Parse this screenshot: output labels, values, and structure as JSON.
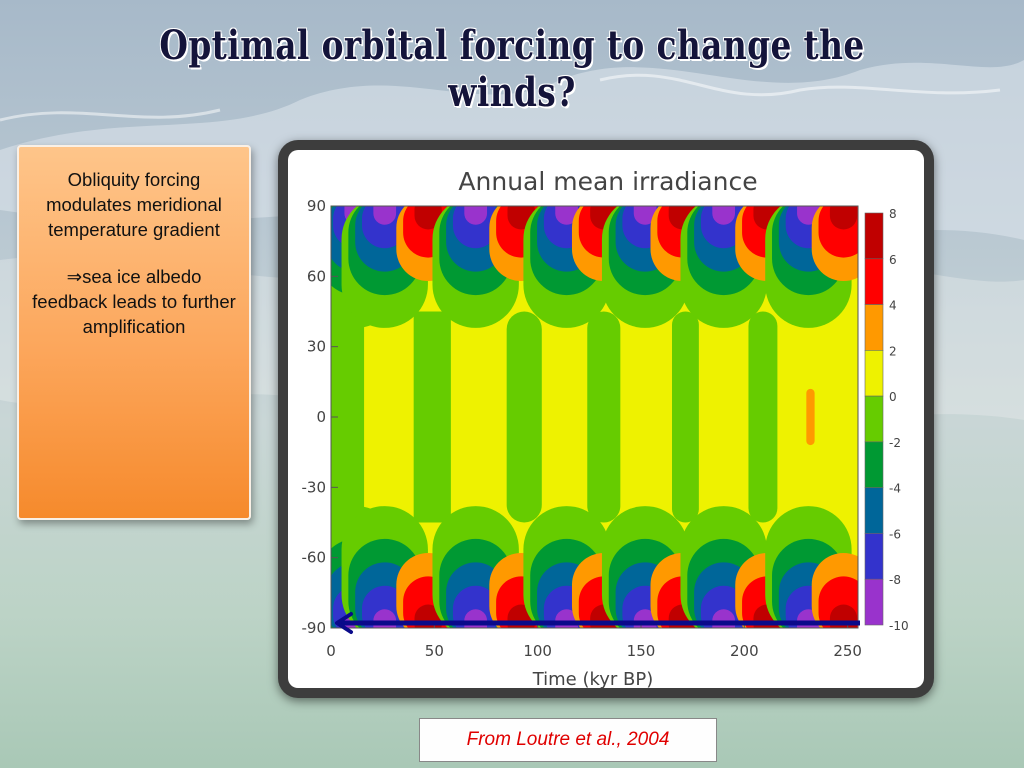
{
  "slide": {
    "title": "Optimal orbital forcing to change the winds?",
    "note_line1": "Obliquity forcing modulates meridional temperature gradient",
    "note_line2": "⇒sea ice albedo feedback leads to further amplification",
    "citation": "From Loutre et al., 2004"
  },
  "chart_data": {
    "type": "heatmap",
    "title": "Annual mean irradiance",
    "xlabel": "Time (kyr BP)",
    "ylabel": "",
    "xlim": [
      0,
      255
    ],
    "ylim": [
      -90,
      90
    ],
    "x_ticks": [
      0,
      50,
      100,
      150,
      200,
      250
    ],
    "y_ticks": [
      90,
      60,
      30,
      0,
      -30,
      -60,
      -90
    ],
    "colorbar": {
      "levels": [
        8,
        6,
        4,
        2,
        0,
        -2,
        -4,
        -6,
        -8,
        -10
      ],
      "colors": [
        "#c00000",
        "#ff0000",
        "#ff9900",
        "#eef200",
        "#66cc00",
        "#009933",
        "#006699",
        "#3333cc",
        "#9933cc"
      ]
    },
    "polar_extremes": [
      {
        "time": 3,
        "type": "max"
      },
      {
        "time": 12,
        "type": "min"
      },
      {
        "time": 26,
        "type": "min"
      },
      {
        "time": 47,
        "type": "max"
      },
      {
        "time": 70,
        "type": "min"
      },
      {
        "time": 92,
        "type": "max"
      },
      {
        "time": 114,
        "type": "min"
      },
      {
        "time": 132,
        "type": "max"
      },
      {
        "time": 152,
        "type": "min"
      },
      {
        "time": 170,
        "type": "max"
      },
      {
        "time": 190,
        "type": "min"
      },
      {
        "time": 211,
        "type": "max"
      },
      {
        "time": 231,
        "type": "min"
      },
      {
        "time": 248,
        "type": "max"
      }
    ],
    "equatorial_bands": [
      {
        "t0": 0,
        "t1": 16,
        "color": "#66cc00"
      },
      {
        "t0": 40,
        "t1": 58,
        "color": "#66cc00"
      },
      {
        "t0": 85,
        "t1": 102,
        "color": "#66cc00"
      },
      {
        "t0": 124,
        "t1": 140,
        "color": "#66cc00"
      },
      {
        "t0": 165,
        "t1": 178,
        "color": "#66cc00"
      },
      {
        "t0": 202,
        "t1": 216,
        "color": "#66cc00"
      },
      {
        "t0": 230,
        "t1": 234,
        "color": "#ff9900"
      }
    ],
    "arrow_annotation": {
      "direction": "left",
      "at_latitude": -90
    }
  }
}
